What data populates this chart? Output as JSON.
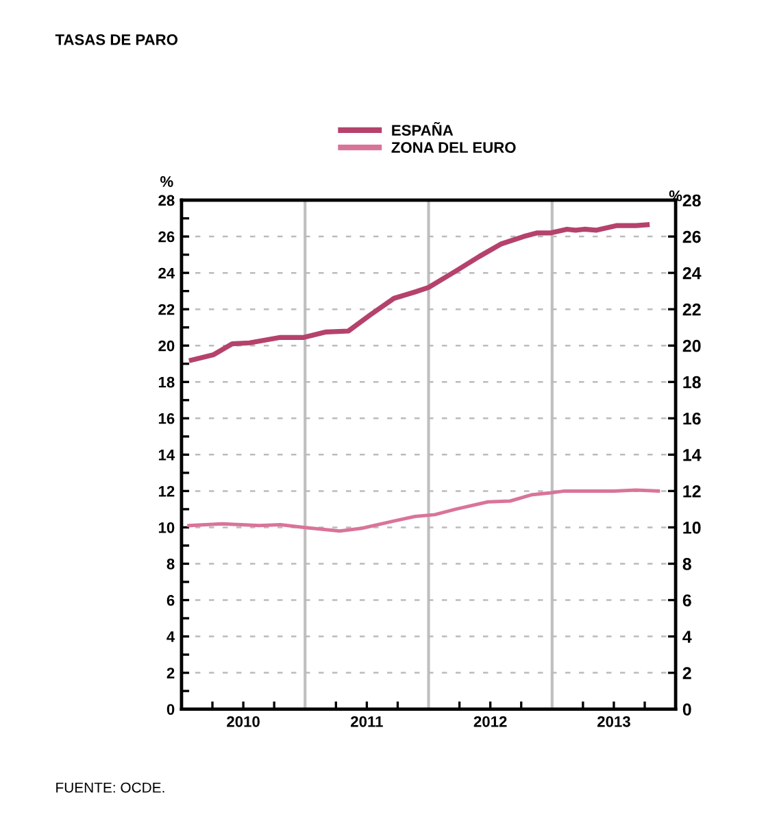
{
  "chart_data": {
    "type": "line",
    "title": "TASAS DE PARO",
    "ylabel": "%",
    "y2label": "%",
    "xlim": [
      2010,
      2014
    ],
    "ylim": [
      0,
      28
    ],
    "y2lim": [
      0,
      28
    ],
    "xticks": [
      {
        "value": 2010.25,
        "label": null
      },
      {
        "value": 2010.5,
        "label": "2010"
      },
      {
        "value": 2010.75,
        "label": null
      },
      {
        "value": 2011.25,
        "label": null
      },
      {
        "value": 2011.5,
        "label": "2011"
      },
      {
        "value": 2011.75,
        "label": null
      },
      {
        "value": 2012.25,
        "label": null
      },
      {
        "value": 2012.5,
        "label": "2012"
      },
      {
        "value": 2012.75,
        "label": null
      },
      {
        "value": 2013.25,
        "label": null
      },
      {
        "value": 2013.5,
        "label": "2013"
      },
      {
        "value": 2013.75,
        "label": null
      }
    ],
    "yticks": [
      0,
      {
        "value": 1,
        "label": null
      },
      2,
      {
        "value": 3,
        "label": null
      },
      4,
      {
        "value": 5,
        "label": null
      },
      6,
      {
        "value": 7,
        "label": null
      },
      8,
      {
        "value": 9,
        "label": null
      },
      10,
      {
        "value": 11,
        "label": null
      },
      12,
      {
        "value": 13,
        "label": null
      },
      14,
      {
        "value": 15,
        "label": null
      },
      16,
      {
        "value": 17,
        "label": null
      },
      18,
      {
        "value": 19,
        "label": null
      },
      20,
      {
        "value": 21,
        "label": null
      },
      22,
      {
        "value": 23,
        "label": null
      },
      24,
      {
        "value": 25,
        "label": null
      },
      26,
      {
        "value": 27,
        "label": null
      },
      28
    ],
    "y2ticks": [
      0,
      2,
      4,
      6,
      8,
      10,
      12,
      14,
      16,
      18,
      20,
      22,
      24,
      26,
      28
    ],
    "grid": "y",
    "legend": "top",
    "marker": "none",
    "line_style": "solid",
    "ref_lines": [
      {
        "axis": "x",
        "value": 2011,
        "label": null,
        "color": "#bfbfbf"
      },
      {
        "axis": "x",
        "value": 2012,
        "label": null,
        "color": "#bfbfbf"
      },
      {
        "axis": "x",
        "value": 2013,
        "label": null,
        "color": "#bfbfbf"
      }
    ],
    "series": [
      {
        "name": "ESPAÑA",
        "color": "#b5426c",
        "x": [
          2010.08,
          2010.26,
          2010.41,
          2010.55,
          2010.8,
          2010.99,
          2011.17,
          2011.35,
          2011.53,
          2011.72,
          2011.89,
          2012.0,
          2012.22,
          2012.41,
          2012.59,
          2012.77,
          2012.88,
          2012.99,
          2013.12,
          2013.19,
          2013.26,
          2013.36,
          2013.52,
          2013.68,
          2013.77
        ],
        "values": [
          19.2,
          19.5,
          20.1,
          20.15,
          20.45,
          20.45,
          20.75,
          20.8,
          21.7,
          22.6,
          22.95,
          23.2,
          24.1,
          24.9,
          25.6,
          26.0,
          26.2,
          26.2,
          26.4,
          26.35,
          26.4,
          26.35,
          26.6,
          26.6,
          26.65
        ]
      },
      {
        "name": "ZONA DEL EURO",
        "color": "#d97499",
        "x": [
          2010.06,
          2010.33,
          2010.63,
          2010.8,
          2010.99,
          2011.28,
          2011.46,
          2011.72,
          2011.89,
          2012.05,
          2012.22,
          2012.48,
          2012.66,
          2012.84,
          2012.99,
          2013.1,
          2013.5,
          2013.68,
          2013.86
        ],
        "values": [
          10.1,
          10.2,
          10.1,
          10.15,
          10.0,
          9.8,
          9.95,
          10.35,
          10.6,
          10.7,
          11.0,
          11.4,
          11.45,
          11.8,
          11.9,
          12.0,
          12.0,
          12.05,
          12.0
        ]
      }
    ],
    "annotations": [
      "FUENTE: OCDE."
    ]
  }
}
